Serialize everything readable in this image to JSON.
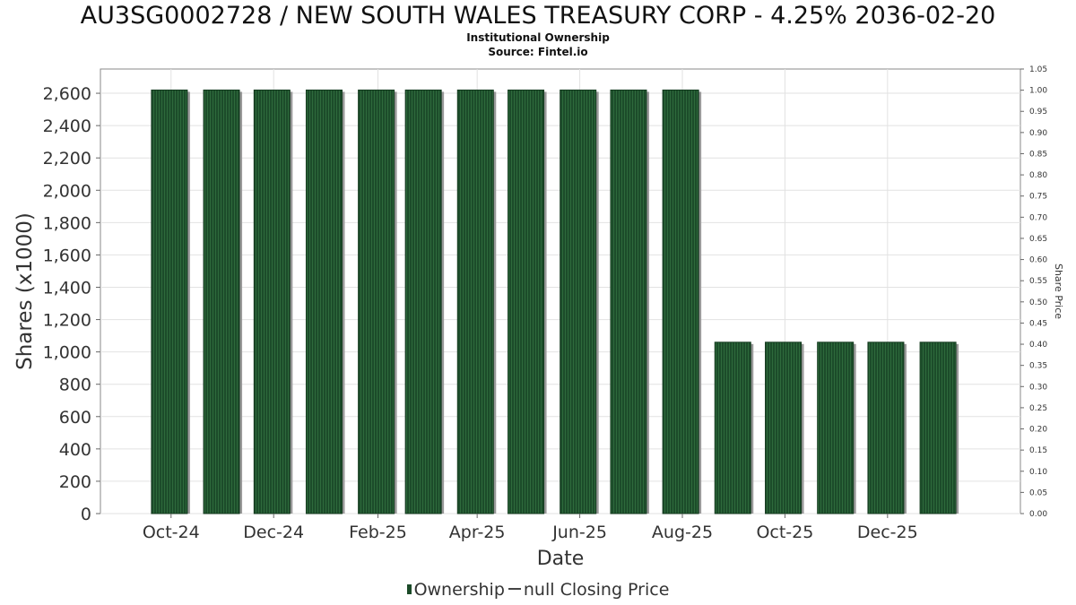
{
  "chart_data": {
    "type": "bar",
    "title": "AU3SG0002728 / NEW SOUTH WALES TREASURY CORP - 4.25% 2036-02-20",
    "subtitle": "Institutional Ownership",
    "source": "Source: Fintel.io",
    "xlabel": "Date",
    "ylabel": "Shares (x1000)",
    "y2label": "Share Price",
    "x_tick_labels": [
      "Oct-24",
      "Dec-24",
      "Feb-25",
      "Apr-25",
      "Jun-25",
      "Aug-25",
      "Oct-25",
      "Dec-25"
    ],
    "x_tick_dates": [
      "2024-10-01",
      "2024-12-01",
      "2025-02-01",
      "2025-04-01",
      "2025-06-01",
      "2025-08-01",
      "2025-10-01",
      "2025-12-01"
    ],
    "x_range": [
      "2024-08-20",
      "2026-02-18"
    ],
    "ylim": [
      0,
      2750
    ],
    "y_ticks": [
      0,
      200,
      400,
      600,
      800,
      1000,
      1200,
      1400,
      1600,
      1800,
      2000,
      2200,
      2400,
      2600
    ],
    "y_tick_labels": [
      "0",
      "200",
      "400",
      "600",
      "800",
      "1,000",
      "1,200",
      "1,400",
      "1,600",
      "1,800",
      "2,000",
      "2,200",
      "2,400",
      "2,600"
    ],
    "y2lim": [
      0,
      1.05
    ],
    "y2_tick_labels": [
      "0.00",
      "0.05",
      "0.10",
      "0.15",
      "0.20",
      "0.25",
      "0.30",
      "0.35",
      "0.40",
      "0.45",
      "0.50",
      "0.55",
      "0.60",
      "0.65",
      "0.70",
      "0.75",
      "0.80",
      "0.85",
      "0.90",
      "0.95",
      "1.00",
      "1.05"
    ],
    "grid": true,
    "legend_placement": "bottom-center",
    "series": [
      {
        "name": "Ownership",
        "color": "#1b4a28",
        "x": [
          "2024-09-30",
          "2024-10-31",
          "2024-11-30",
          "2024-12-31",
          "2025-01-31",
          "2025-02-28",
          "2025-03-31",
          "2025-04-30",
          "2025-05-31",
          "2025-06-30",
          "2025-07-31",
          "2025-08-31",
          "2025-09-30",
          "2025-10-31",
          "2025-11-30",
          "2025-12-31"
        ],
        "values": [
          2620,
          2620,
          2620,
          2620,
          2620,
          2620,
          2620,
          2620,
          2620,
          2620,
          2620,
          1060,
          1060,
          1060,
          1060,
          1060
        ]
      }
    ],
    "legend": {
      "ownership_label": "Ownership",
      "price_label": "null Closing Price"
    }
  }
}
